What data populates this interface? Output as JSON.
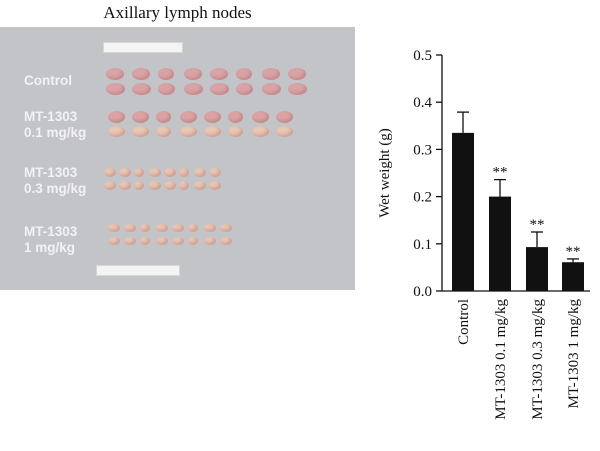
{
  "figure": {
    "photo_title": "Axillary lymph nodes",
    "photo_groups": [
      {
        "line1": "Control",
        "line2": ""
      },
      {
        "line1": "MT-1303",
        "line2": "0.1 mg/kg"
      },
      {
        "line1": "MT-1303",
        "line2": "0.3 mg/kg"
      },
      {
        "line1": "MT-1303",
        "line2": "1 mg/kg"
      }
    ],
    "colors": {
      "photo_background": "#c3c4c8",
      "node_pink": "#d9a3a6",
      "node_pale": "#e7c6b4",
      "bar": "#111111"
    }
  },
  "chart_data": {
    "type": "bar",
    "categories": [
      "Control",
      "MT-1303 0.1 mg/kg",
      "MT-1303 0.3 mg/kg",
      "MT-1303 1 mg/kg"
    ],
    "values": [
      0.335,
      0.2,
      0.093,
      0.061
    ],
    "errors": [
      0.044,
      0.036,
      0.032,
      0.007
    ],
    "annotations": [
      "",
      "**",
      "**",
      "**"
    ],
    "title": "",
    "xlabel": "",
    "ylabel": "Wet weight (g)",
    "ylim": [
      0,
      0.5
    ],
    "yticks": [
      "0.0",
      "0.1",
      "0.2",
      "0.3",
      "0.4",
      "0.5"
    ],
    "grid": false,
    "legend": "none"
  }
}
